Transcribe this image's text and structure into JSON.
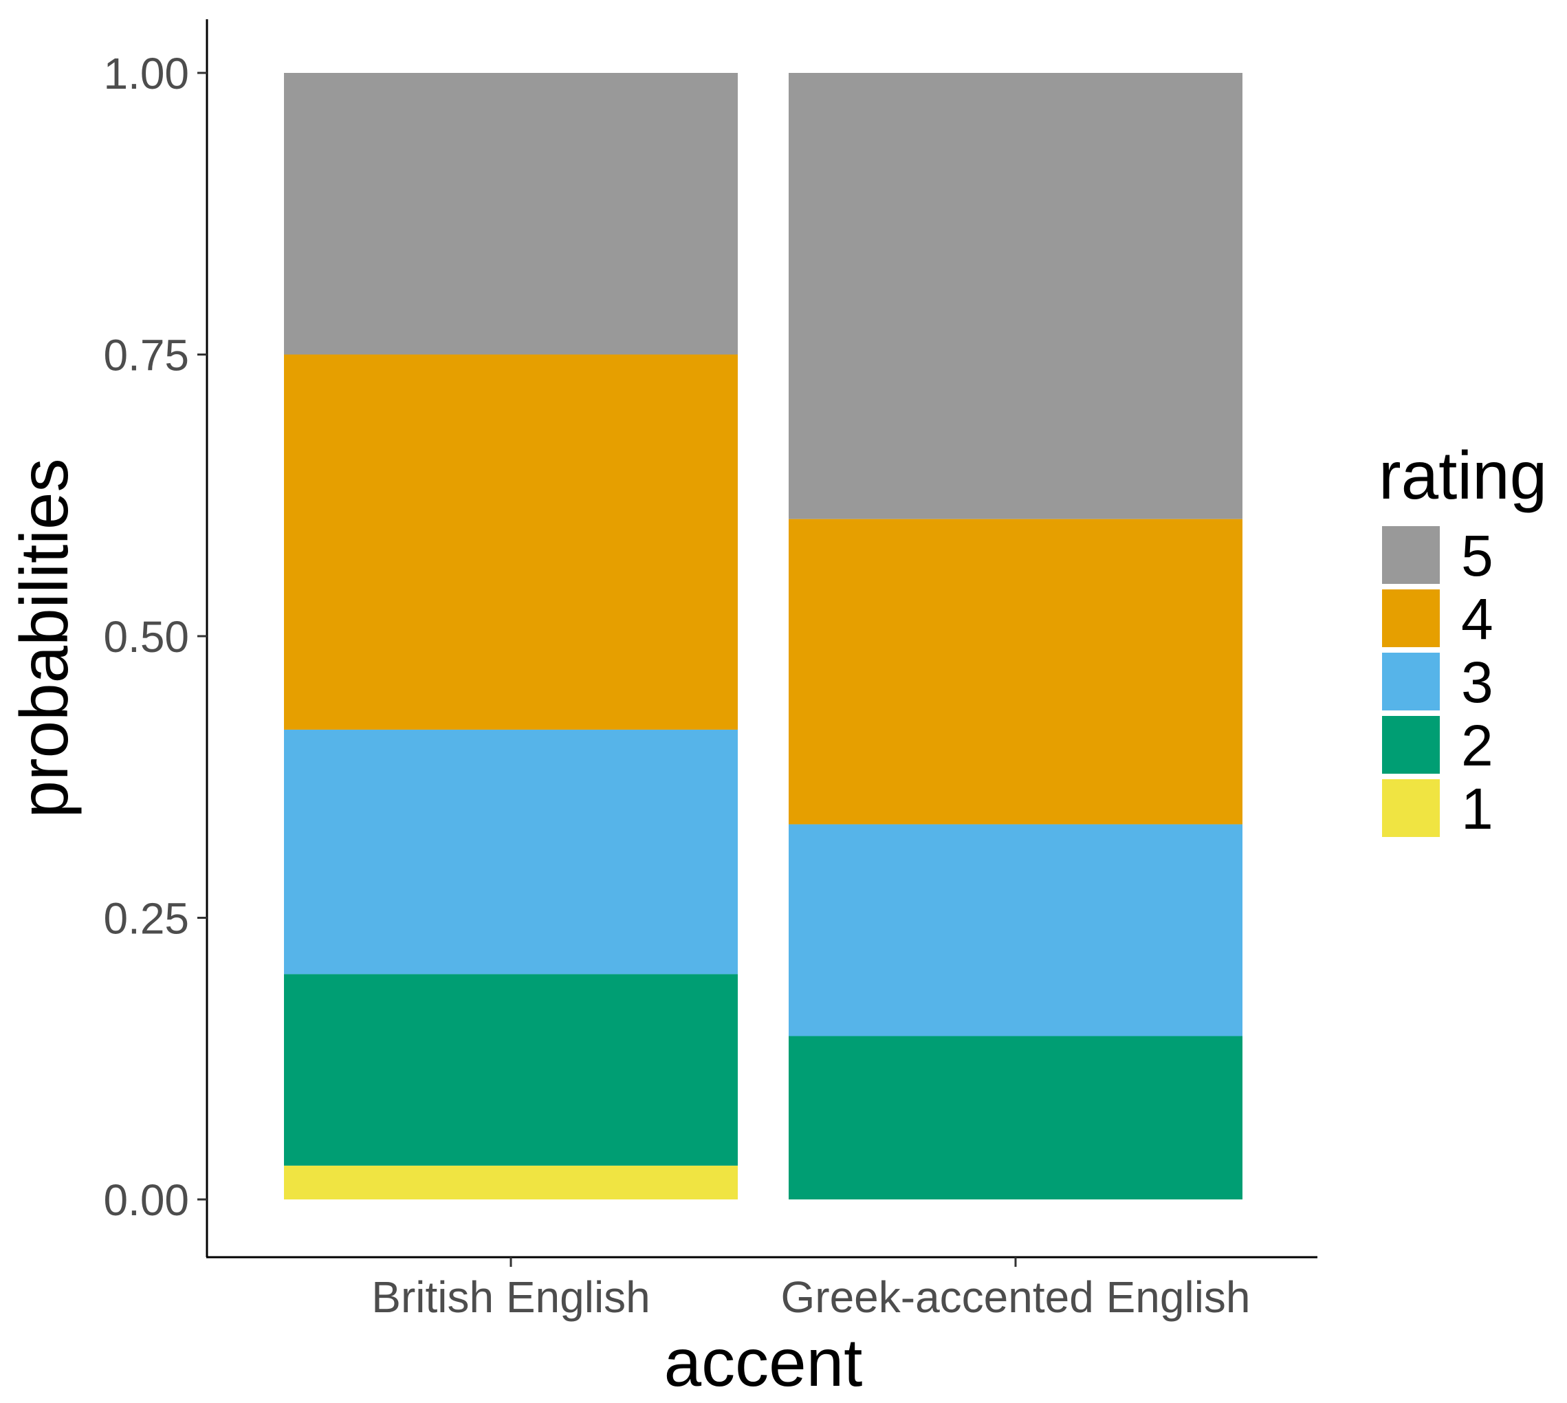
{
  "chart_data": {
    "type": "bar",
    "stacked": true,
    "xlabel": "accent",
    "ylabel": "probabilities",
    "ylim": [
      0,
      1
    ],
    "yticks": [
      "0.00",
      "0.25",
      "0.50",
      "0.75",
      "1.00"
    ],
    "categories": [
      "British English",
      "Greek-accented English"
    ],
    "series": [
      {
        "name": "1",
        "color": "#F0E442",
        "values": [
          0.03,
          0.0
        ]
      },
      {
        "name": "2",
        "color": "#009E73",
        "values": [
          0.17,
          0.145
        ]
      },
      {
        "name": "3",
        "color": "#56B4E9",
        "values": [
          0.217,
          0.188
        ]
      },
      {
        "name": "4",
        "color": "#E69F00",
        "values": [
          0.333,
          0.271
        ]
      },
      {
        "name": "5",
        "color": "#999999",
        "values": [
          0.25,
          0.396
        ]
      }
    ],
    "legend": {
      "title": "rating",
      "placement": "right",
      "order": [
        "5",
        "4",
        "3",
        "2",
        "1"
      ]
    },
    "grid": false
  }
}
